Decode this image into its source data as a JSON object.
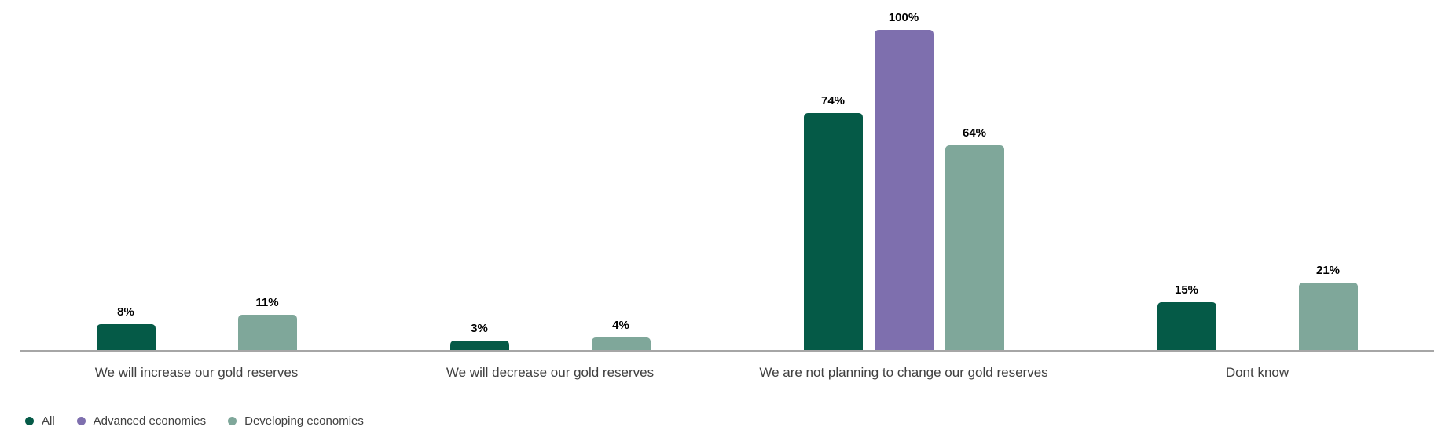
{
  "chart_data": {
    "type": "bar",
    "categories": [
      "We will increase our gold reserves",
      "We will decrease our gold reserves",
      "We are not planning to change our gold reserves",
      "Dont know"
    ],
    "series": [
      {
        "name": "All",
        "color": "#055A47",
        "values": [
          8,
          3,
          74,
          15
        ]
      },
      {
        "name": "Advanced economies",
        "color": "#7E6FAE",
        "values": [
          0,
          0,
          100,
          0
        ]
      },
      {
        "name": "Developing economies",
        "color": "#7FA79A",
        "values": [
          11,
          4,
          64,
          21
        ]
      }
    ],
    "value_suffix": "%",
    "data_labels_shown": [
      "8%",
      "11%",
      "3%",
      "4%",
      "74%",
      "100%",
      "64%",
      "15%",
      "21%"
    ],
    "ylim": [
      0,
      100
    ],
    "grid": false,
    "y_axis_visible": false,
    "legend_position": "bottom-left",
    "colors": {
      "axis_line": "#A6A6A6",
      "category_label_text": "#404040",
      "value_label_text": "#000000",
      "legend_text": "#404040",
      "background": "#FFFFFF"
    }
  }
}
